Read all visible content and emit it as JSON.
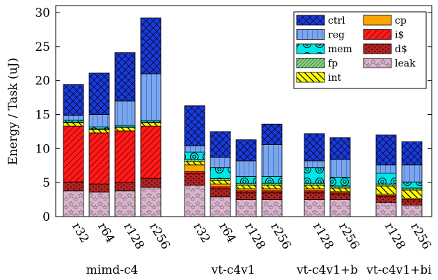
{
  "chart_data": {
    "type": "bar",
    "stacked": true,
    "title": "",
    "xlabel": "",
    "ylabel": "Energy / Task (uJ)",
    "ylim": [
      0,
      30
    ],
    "yticks": [
      0,
      5,
      10,
      15,
      20,
      25,
      30
    ],
    "grid": false,
    "legend_position": "top-right",
    "components": [
      "leak",
      "d$",
      "i$",
      "cp",
      "int",
      "fp",
      "mem",
      "reg",
      "ctrl"
    ],
    "legend_order": [
      "ctrl",
      "cp",
      "reg",
      "i$",
      "mem",
      "d$",
      "fp",
      "leak",
      "int"
    ],
    "colors": {
      "leak": "#d9b3cc",
      "d$": "#b22222",
      "i$": "#ff1a1a",
      "cp": "#ffa500",
      "int": "#ffff00",
      "fp": "#8fd18f",
      "mem": "#00e5e5",
      "reg": "#7aa7e8",
      "ctrl": "#1a3adb"
    },
    "groups": [
      {
        "name": "mimd-c4",
        "bars": [
          {
            "label": "r32",
            "values": {
              "leak": 3.8,
              "d$": 1.3,
              "i$": 8.2,
              "cp": 0.0,
              "int": 0.5,
              "fp": 0.1,
              "mem": 0.3,
              "reg": 0.7,
              "ctrl": 4.5
            }
          },
          {
            "label": "r64",
            "values": {
              "leak": 3.6,
              "d$": 1.2,
              "i$": 7.5,
              "cp": 0.0,
              "int": 0.5,
              "fp": 0.1,
              "mem": 0.3,
              "reg": 1.8,
              "ctrl": 6.1
            }
          },
          {
            "label": "r128",
            "values": {
              "leak": 3.8,
              "d$": 1.2,
              "i$": 7.6,
              "cp": 0.0,
              "int": 0.5,
              "fp": 0.1,
              "mem": 0.2,
              "reg": 3.6,
              "ctrl": 7.1
            }
          },
          {
            "label": "r256",
            "values": {
              "leak": 4.3,
              "d$": 1.3,
              "i$": 7.7,
              "cp": 0.0,
              "int": 0.5,
              "fp": 0.1,
              "mem": 0.2,
              "reg": 6.9,
              "ctrl": 8.2
            }
          }
        ]
      },
      {
        "name": "vt-c4v1",
        "bars": [
          {
            "label": "r32",
            "values": {
              "leak": 4.6,
              "d$": 1.7,
              "i$": 0.3,
              "cp": 1.0,
              "int": 0.5,
              "fp": 0.3,
              "mem": 1.1,
              "reg": 0.9,
              "ctrl": 5.9
            }
          },
          {
            "label": "r64",
            "values": {
              "leak": 2.9,
              "d$": 1.2,
              "i$": 0.3,
              "cp": 0.4,
              "int": 0.5,
              "fp": 0.3,
              "mem": 1.6,
              "reg": 1.5,
              "ctrl": 3.8
            }
          },
          {
            "label": "r128",
            "values": {
              "leak": 2.5,
              "d$": 1.0,
              "i$": 0.3,
              "cp": 0.3,
              "int": 0.5,
              "fp": 0.3,
              "mem": 1.0,
              "reg": 2.3,
              "ctrl": 3.1
            }
          },
          {
            "label": "r256",
            "values": {
              "leak": 2.5,
              "d$": 1.0,
              "i$": 0.3,
              "cp": 0.3,
              "int": 0.5,
              "fp": 0.3,
              "mem": 1.0,
              "reg": 4.7,
              "ctrl": 3.0
            }
          }
        ]
      },
      {
        "name": "vt-c4v1+b",
        "bars": [
          {
            "label": "r128",
            "values": {
              "leak": 2.5,
              "d$": 1.0,
              "i$": 0.3,
              "cp": 0.3,
              "int": 0.5,
              "fp": 0.3,
              "mem": 2.3,
              "reg": 1.0,
              "ctrl": 4.0
            }
          },
          {
            "label": "r256",
            "values": {
              "leak": 2.5,
              "d$": 0.8,
              "i$": 0.2,
              "cp": 0.2,
              "int": 0.5,
              "fp": 0.3,
              "mem": 1.3,
              "reg": 2.6,
              "ctrl": 3.2
            }
          }
        ]
      },
      {
        "name": "vt-c4v1+bi",
        "bars": [
          {
            "label": "r128",
            "values": {
              "leak": 2.1,
              "d$": 0.8,
              "i$": 0.2,
              "cp": 0.2,
              "int": 1.2,
              "fp": 0.3,
              "mem": 1.6,
              "reg": 1.2,
              "ctrl": 4.4
            }
          },
          {
            "label": "r256",
            "values": {
              "leak": 1.7,
              "d$": 0.6,
              "i$": 0.2,
              "cp": 0.2,
              "int": 1.2,
              "fp": 0.3,
              "mem": 0.9,
              "reg": 2.5,
              "ctrl": 3.4
            }
          }
        ]
      }
    ]
  }
}
